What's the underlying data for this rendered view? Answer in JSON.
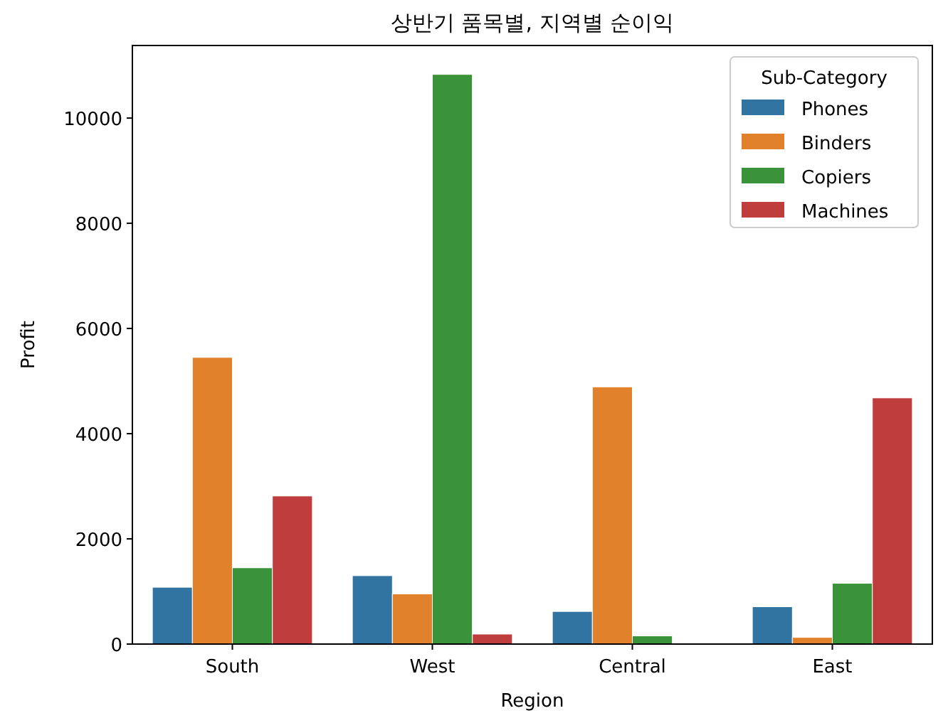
{
  "chart_data": {
    "type": "bar",
    "title": "상반기 품목별, 지역별 순이익",
    "xlabel": "Region",
    "ylabel": "Profit",
    "legend_title": "Sub-Category",
    "legend": "top right",
    "grid": false,
    "categories": [
      "South",
      "West",
      "Central",
      "East"
    ],
    "ylim": [
      0,
      11380
    ],
    "yticks": [
      0,
      2000,
      4000,
      6000,
      8000,
      10000
    ],
    "series": [
      {
        "name": "Phones",
        "color": "#3274a1",
        "values": [
          1080,
          1300,
          620,
          710
        ]
      },
      {
        "name": "Binders",
        "color": "#e1812c",
        "values": [
          5450,
          955,
          4890,
          127
        ]
      },
      {
        "name": "Copiers",
        "color": "#3a923a",
        "values": [
          1450,
          10830,
          155,
          1155
        ]
      },
      {
        "name": "Machines",
        "color": "#c03d3e",
        "values": [
          2815,
          190,
          null,
          4680
        ]
      }
    ]
  }
}
